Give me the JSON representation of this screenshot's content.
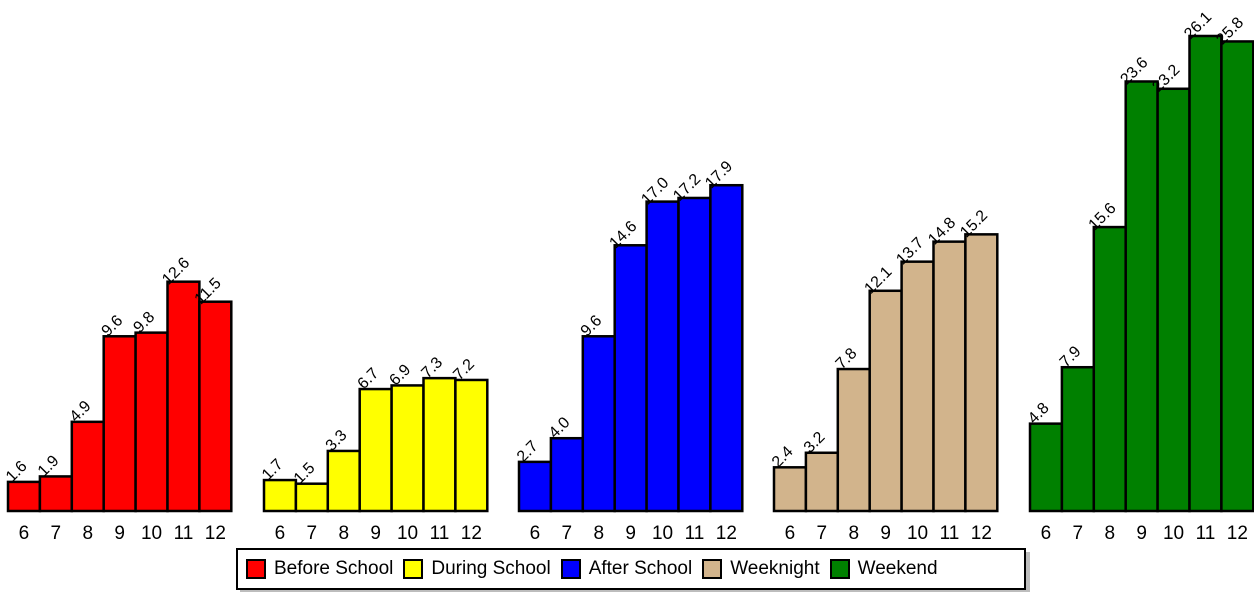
{
  "chart_data": {
    "type": "bar",
    "categories": [
      "6",
      "7",
      "8",
      "9",
      "10",
      "11",
      "12"
    ],
    "series": [
      {
        "name": "Before School",
        "color": "#ff0000",
        "values": [
          1.6,
          1.9,
          4.9,
          9.6,
          9.8,
          12.6,
          11.5
        ]
      },
      {
        "name": "During School",
        "color": "#ffff00",
        "values": [
          1.7,
          1.5,
          3.3,
          6.7,
          6.9,
          7.3,
          7.2
        ]
      },
      {
        "name": "After School",
        "color": "#0000ff",
        "values": [
          2.7,
          4.0,
          9.6,
          14.6,
          17.0,
          17.2,
          17.9
        ]
      },
      {
        "name": "Weeknight",
        "color": "#d2b48c",
        "values": [
          2.4,
          3.2,
          7.8,
          12.1,
          13.7,
          14.8,
          15.2
        ]
      },
      {
        "name": "Weekend",
        "color": "#008000",
        "values": [
          4.8,
          7.9,
          15.6,
          23.6,
          23.2,
          26.1,
          25.8
        ]
      }
    ],
    "title": "",
    "xlabel": "",
    "ylabel": "",
    "ylim": [
      0,
      26.1
    ],
    "grid": false,
    "legend_position": "bottom"
  }
}
